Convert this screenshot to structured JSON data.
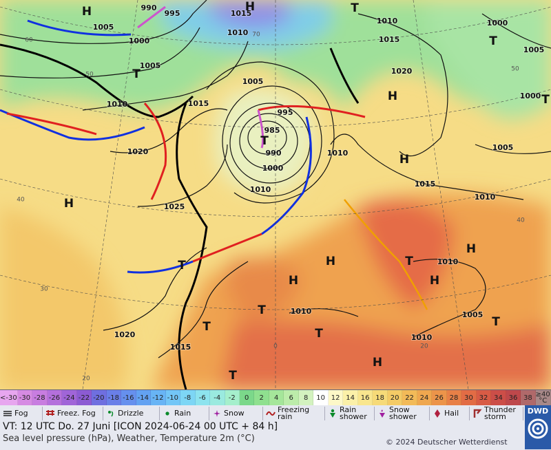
{
  "map": {
    "pressure_labels": [
      1005,
      1000,
      990,
      995,
      1015,
      1010,
      1005,
      1010,
      1015,
      1020,
      1025,
      1005,
      995,
      985,
      990,
      1000,
      1010,
      1010,
      1015,
      1010,
      1015,
      1020,
      1000,
      1005,
      1000,
      1005,
      1010,
      1010,
      1010,
      1005,
      1010,
      1020,
      1015
    ],
    "centers": [
      "H",
      "H",
      "T",
      "T",
      "T",
      "H",
      "T",
      "T",
      "H",
      "H",
      "H",
      "H",
      "H",
      "H",
      "T",
      "T",
      "T",
      "T",
      "H",
      "T",
      "T",
      "T"
    ],
    "temp_labels": [
      60,
      50,
      40,
      30,
      20,
      0,
      20,
      40,
      50,
      70
    ]
  },
  "scale": {
    "labels": [
      "<-30",
      -30,
      -28,
      -26,
      -24,
      -22,
      -20,
      -18,
      -16,
      -14,
      -12,
      -10,
      -8,
      -6,
      -4,
      -2,
      0,
      2,
      4,
      6,
      8,
      10,
      12,
      14,
      16,
      18,
      20,
      22,
      24,
      26,
      28,
      30,
      32,
      34,
      36,
      38,
      "≥40 °C"
    ],
    "colors": [
      "#e7a6ef",
      "#d68be3",
      "#c87de0",
      "#b470dc",
      "#a065d8",
      "#8c5bd3",
      "#6f6fe0",
      "#6a7fe8",
      "#6690ee",
      "#63a2f2",
      "#68b4f5",
      "#73c6f7",
      "#7dd6f5",
      "#8de3ee",
      "#9aeadf",
      "#a5efcc",
      "#7bd88a",
      "#8fe08f",
      "#a5e69a",
      "#bcecaa",
      "#d3f2bf",
      "#ffffff",
      "#fdf8c8",
      "#fbf0a8",
      "#f9e68e",
      "#f6da78",
      "#f4cb66",
      "#f2ba58",
      "#efa74f",
      "#ec944a",
      "#e88047",
      "#e26c45",
      "#d85b45",
      "#cc4e48",
      "#be484b",
      "#b0696a",
      "#a88888"
    ]
  },
  "legend": [
    "Fog",
    "Freez. Fog",
    "Drizzle",
    "Rain",
    "Snow",
    "Freezing rain",
    "Rain shower",
    "Snow shower",
    "Hail",
    "Thunder storm"
  ],
  "footer": {
    "valid_time": "VT: 12 UTC Do.  27 Juni [ICON 2024-06-24  00 UTC + 84 h]",
    "description": "Sea level pressure (hPa), Weather, Temperature 2m (°C)",
    "copyright": "© 2024 Deutscher Wetterdienst",
    "logo": "DWD"
  }
}
